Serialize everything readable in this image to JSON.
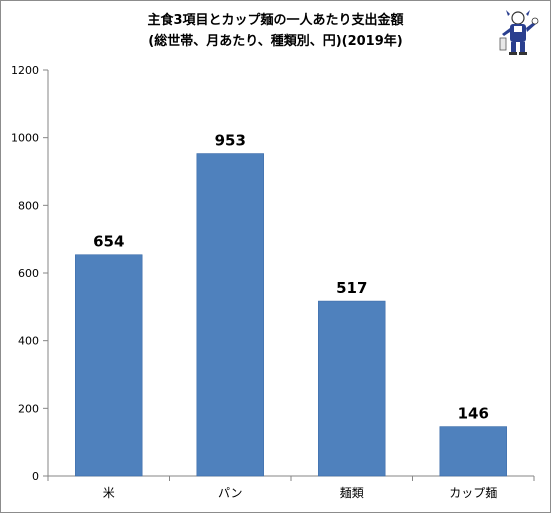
{
  "chart_data": {
    "type": "bar",
    "title_lines": [
      "主食3項目とカップ麺の一人あたり支出金額",
      "(総世帯、月あたり、種類別、円)(2019年)"
    ],
    "categories": [
      "米",
      "パン",
      "麺類",
      "カップ麺"
    ],
    "values": [
      654,
      953,
      517,
      146
    ],
    "data_labels": [
      "654",
      "953",
      "517",
      "146"
    ],
    "ylim": [
      0,
      1200
    ],
    "yticks": [
      0,
      200,
      400,
      600,
      800,
      1000,
      1200
    ],
    "ytick_labels": [
      "0",
      "200",
      "400",
      "600",
      "800",
      "1000",
      "1200"
    ],
    "grid": false,
    "legend": "none",
    "bar_color": "#4f81bd",
    "bar_border_color": "#3a6aa8"
  },
  "mascot": {
    "icon": "mascot-icon"
  }
}
